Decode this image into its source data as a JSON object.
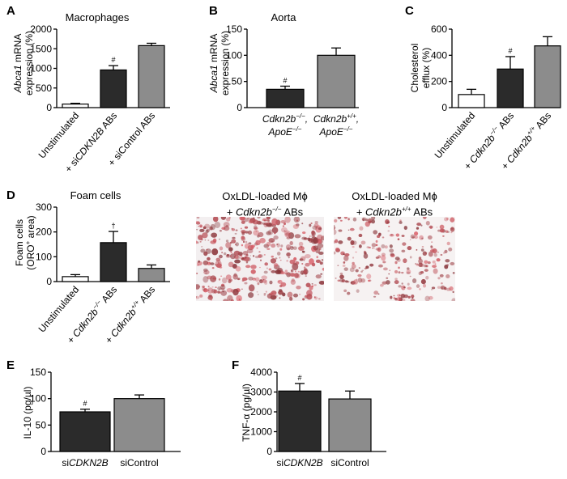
{
  "chart_data": [
    {
      "type": "bar",
      "panel": "A",
      "title": "Macrophages",
      "ylabel_italic": "Abca1",
      "ylabel_rest": " mRNA",
      "ylabel_line2": "expression (%)",
      "ylim": [
        0,
        2000
      ],
      "yticks": [
        "0",
        "500",
        "1000",
        "1500",
        "2000"
      ],
      "yticks_v": [
        0,
        500,
        1000,
        1500,
        2000
      ],
      "bars": [
        {
          "label": [
            {
              "t": "Unstimulated",
              "i": false
            }
          ],
          "value": 90,
          "error": 20,
          "fill": "#ffffff",
          "marker": ""
        },
        {
          "label": [
            {
              "t": "+ si",
              "i": false
            },
            {
              "t": "CDKN2B",
              "i": true
            },
            {
              "t": " ABs",
              "i": false
            }
          ],
          "value": 960,
          "error": 110,
          "fill": "#2b2b2b",
          "marker": "#"
        },
        {
          "label": [
            {
              "t": "+ siControl ABs",
              "i": false
            }
          ],
          "value": 1580,
          "error": 60,
          "fill": "#8c8c8c",
          "marker": ""
        }
      ]
    },
    {
      "type": "bar",
      "panel": "B",
      "title": "Aorta",
      "ylabel_italic": "Abca1",
      "ylabel_rest": " mRNA",
      "ylabel_line2": "expression (%)",
      "ylim": [
        0,
        150
      ],
      "yticks": [
        "0",
        "50",
        "100",
        "150"
      ],
      "yticks_v": [
        0,
        50,
        100,
        150
      ],
      "bars": [
        {
          "label1": [
            {
              "t": "Cdkn2b",
              "i": true
            },
            {
              "t": "−/−",
              "i": true,
              "sup": true
            },
            {
              "t": ",",
              "i": true
            }
          ],
          "label2": [
            {
              "t": "ApoE",
              "i": true
            },
            {
              "t": "−/−",
              "i": true,
              "sup": true
            }
          ],
          "value": 35,
          "error": 6,
          "fill": "#2b2b2b",
          "marker": "#"
        },
        {
          "label1": [
            {
              "t": "Cdkn2b",
              "i": true
            },
            {
              "t": "+/+",
              "i": true,
              "sup": true
            },
            {
              "t": ",",
              "i": true
            }
          ],
          "label2": [
            {
              "t": "ApoE",
              "i": true
            },
            {
              "t": "−/−",
              "i": true,
              "sup": true
            }
          ],
          "value": 100,
          "error": 14,
          "fill": "#8c8c8c",
          "marker": ""
        }
      ]
    },
    {
      "type": "bar",
      "panel": "C",
      "title": "",
      "ylabel_line1": "Cholesterol",
      "ylabel_line2": "efflux (%)",
      "ylim": [
        0,
        600
      ],
      "yticks": [
        "0",
        "200",
        "400",
        "600"
      ],
      "yticks_v": [
        0,
        200,
        400,
        600
      ],
      "bars": [
        {
          "label": [
            {
              "t": "Unstimulated",
              "i": false
            }
          ],
          "value": 100,
          "error": 40,
          "fill": "#ffffff",
          "marker": ""
        },
        {
          "label": [
            {
              "t": "+ ",
              "i": false
            },
            {
              "t": "Cdkn2b",
              "i": true
            },
            {
              "t": "−/−",
              "i": true,
              "sup": true
            },
            {
              "t": " ABs",
              "i": false
            }
          ],
          "value": 295,
          "error": 95,
          "fill": "#2b2b2b",
          "marker": "#"
        },
        {
          "label": [
            {
              "t": "+ ",
              "i": false
            },
            {
              "t": "Cdkn2b",
              "i": true
            },
            {
              "t": "+/+",
              "i": true,
              "sup": true
            },
            {
              "t": " ABs",
              "i": false
            }
          ],
          "value": 472,
          "error": 70,
          "fill": "#8c8c8c",
          "marker": ""
        }
      ]
    },
    {
      "type": "bar",
      "panel": "D",
      "title": "Foam cells",
      "ylabel_line1": "Foam cells",
      "ylabel_pre": "(ORO",
      "ylabel_sup": "+",
      "ylabel_post": " area)",
      "ylim": [
        0,
        300
      ],
      "yticks": [
        "0",
        "100",
        "200",
        "300"
      ],
      "yticks_v": [
        0,
        100,
        200,
        300
      ],
      "bars": [
        {
          "label": [
            {
              "t": "Unstimulated",
              "i": false
            }
          ],
          "value": 20,
          "error": 8,
          "fill": "#ffffff",
          "marker": ""
        },
        {
          "label": [
            {
              "t": "+ ",
              "i": false
            },
            {
              "t": "Cdkn2b",
              "i": true
            },
            {
              "t": "−/−",
              "i": true,
              "sup": true
            },
            {
              "t": " ABs",
              "i": false
            }
          ],
          "value": 157,
          "error": 45,
          "fill": "#2b2b2b",
          "marker": "†"
        },
        {
          "label": [
            {
              "t": "+ ",
              "i": false
            },
            {
              "t": "Cdkn2b",
              "i": true
            },
            {
              "t": "+/+",
              "i": true,
              "sup": true
            },
            {
              "t": " ABs",
              "i": false
            }
          ],
          "value": 53,
          "error": 14,
          "fill": "#8c8c8c",
          "marker": ""
        }
      ]
    },
    {
      "type": "bar",
      "panel": "E",
      "title": "",
      "ylabel": "IL-10 (pg/µl)",
      "ylim": [
        0,
        150
      ],
      "yticks": [
        "0",
        "50",
        "100",
        "150"
      ],
      "yticks_v": [
        0,
        50,
        100,
        150
      ],
      "bars": [
        {
          "label": [
            {
              "t": "si",
              "i": false
            },
            {
              "t": "CDKN2B",
              "i": true
            }
          ],
          "value": 75,
          "error": 5,
          "fill": "#2b2b2b",
          "marker": "#"
        },
        {
          "label": [
            {
              "t": "siControl",
              "i": false
            }
          ],
          "value": 100,
          "error": 7,
          "fill": "#8c8c8c",
          "marker": ""
        }
      ]
    },
    {
      "type": "bar",
      "panel": "F",
      "title": "",
      "ylabel": "TNF-α (pg/µl)",
      "ylim": [
        0,
        4000
      ],
      "yticks": [
        "0",
        "1000",
        "2000",
        "3000",
        "4000"
      ],
      "yticks_v": [
        0,
        1000,
        2000,
        3000,
        4000
      ],
      "bars": [
        {
          "label": [
            {
              "t": "si",
              "i": false
            },
            {
              "t": "CDKN2B",
              "i": true
            }
          ],
          "value": 3050,
          "error": 380,
          "fill": "#2b2b2b",
          "marker": "#"
        },
        {
          "label": [
            {
              "t": "siControl",
              "i": false
            }
          ],
          "value": 2650,
          "error": 400,
          "fill": "#8c8c8c",
          "marker": ""
        }
      ]
    }
  ],
  "micrographs": [
    {
      "line1": "OxLDL-loaded Mϕ",
      "line2_pre": "+ ",
      "line2_italic": "Cdkn2b",
      "line2_sup": "−/−",
      "line2_post": " ABs"
    },
    {
      "line1": "OxLDL-loaded Mϕ",
      "line2_pre": "+ ",
      "line2_italic": "Cdkn2b",
      "line2_sup": "+/+",
      "line2_post": " ABs"
    }
  ]
}
